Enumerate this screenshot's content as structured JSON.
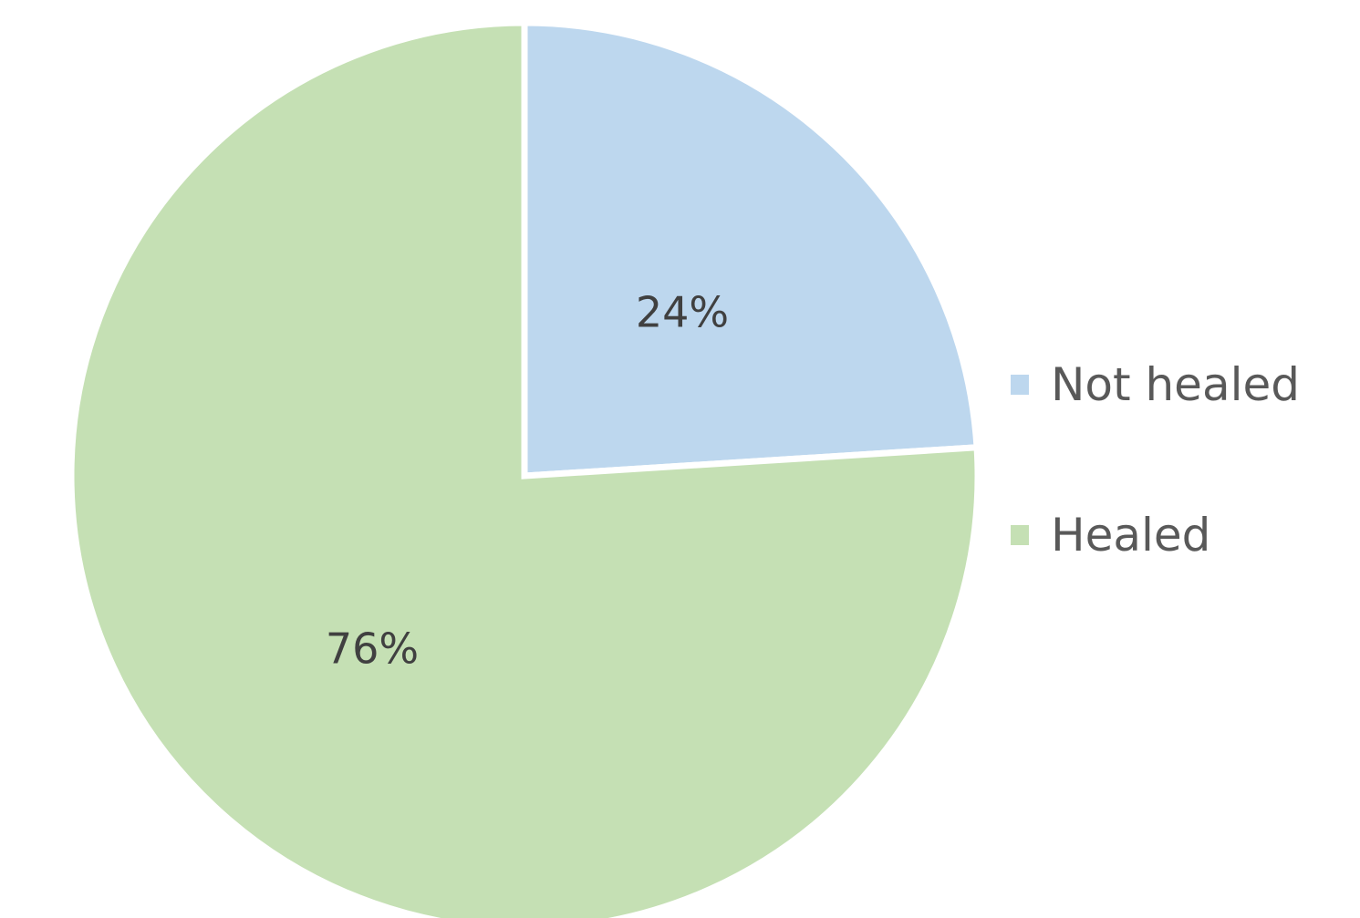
{
  "chart_data": {
    "type": "pie",
    "categories": [
      "Not healed",
      "Healed"
    ],
    "values": [
      24,
      76
    ],
    "data_labels": [
      "24%",
      "76%"
    ],
    "colors": [
      "#bdd7ee",
      "#c5e0b4"
    ],
    "slice_border_color": "#ffffff",
    "legend_position": "right",
    "start_angle": "12 o'clock",
    "direction": "clockwise"
  }
}
